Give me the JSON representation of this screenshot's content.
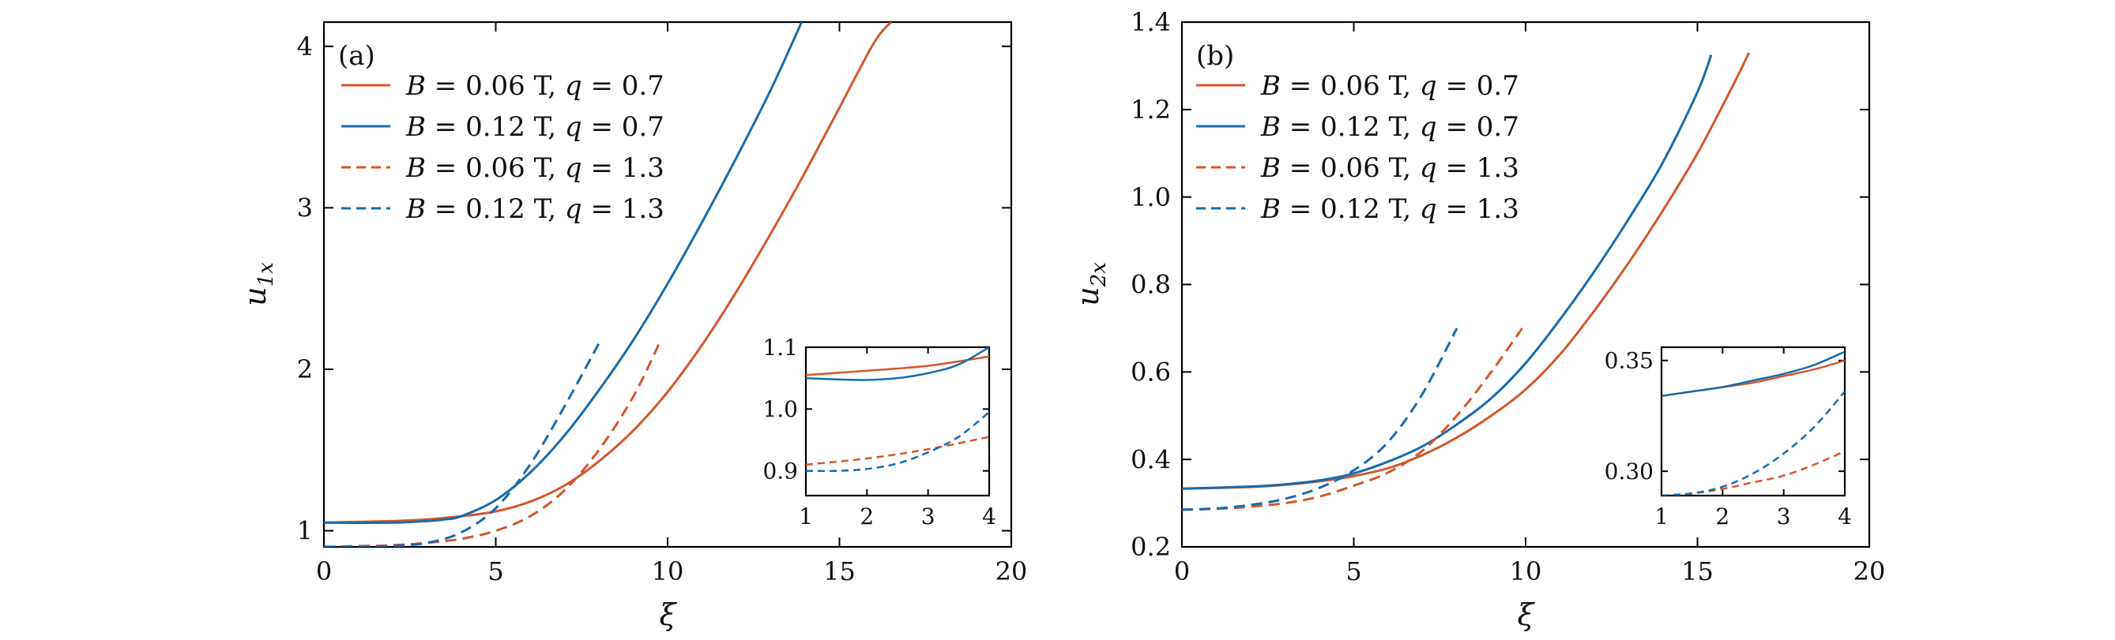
{
  "colors": {
    "orange": "#d4562e",
    "blue": "#1a6bab",
    "axis": "#000000"
  },
  "legend_entries": [
    {
      "prefix": "B",
      "eq1": " = 0.06 ",
      "unit": "T,",
      "qvar": "q",
      "eq2": " = 0.7",
      "color": "orange",
      "dash": false
    },
    {
      "prefix": "B",
      "eq1": " = 0.12 ",
      "unit": "T,",
      "qvar": "q",
      "eq2": " = 0.7",
      "color": "blue",
      "dash": false
    },
    {
      "prefix": "B",
      "eq1": " = 0.06 ",
      "unit": "T,",
      "qvar": "q",
      "eq2": " = 1.3",
      "color": "orange",
      "dash": true
    },
    {
      "prefix": "B",
      "eq1": " = 0.12 ",
      "unit": "T,",
      "qvar": "q",
      "eq2": " = 1.3",
      "color": "blue",
      "dash": true
    }
  ],
  "chart_data": [
    {
      "type": "line",
      "panel_label": "(a)",
      "xlabel": "ξ",
      "ylabel_base": "u",
      "ylabel_sub": "1x",
      "xlim": [
        0,
        20
      ],
      "ylim": [
        0.9,
        4.15
      ],
      "xticks": [
        0,
        5,
        10,
        15,
        20
      ],
      "yticks": [
        1,
        2,
        3,
        4
      ],
      "series": [
        {
          "name": "B = 0.06 T, q = 0.7",
          "color": "orange",
          "dash": false,
          "x": [
            0,
            2,
            3,
            4,
            5,
            6,
            7,
            8,
            9,
            10,
            11,
            12,
            13,
            14,
            15,
            16,
            16.5
          ],
          "y": [
            1.05,
            1.06,
            1.07,
            1.09,
            1.12,
            1.18,
            1.28,
            1.43,
            1.62,
            1.86,
            2.15,
            2.48,
            2.84,
            3.22,
            3.62,
            4.02,
            4.15
          ]
        },
        {
          "name": "B = 0.12 T, q = 0.7",
          "color": "blue",
          "dash": false,
          "x": [
            0,
            2,
            3,
            3.5,
            4,
            5,
            6,
            7,
            8,
            9,
            10,
            11,
            12,
            13,
            13.9
          ],
          "y": [
            1.05,
            1.05,
            1.06,
            1.07,
            1.09,
            1.19,
            1.36,
            1.59,
            1.87,
            2.18,
            2.53,
            2.91,
            3.31,
            3.73,
            4.15
          ]
        },
        {
          "name": "B = 0.06 T, q = 1.3",
          "color": "orange",
          "dash": true,
          "x": [
            0,
            1,
            2,
            3,
            4,
            5,
            6,
            7,
            8,
            9,
            9.8
          ],
          "y": [
            0.9,
            0.905,
            0.91,
            0.925,
            0.95,
            1.0,
            1.09,
            1.25,
            1.5,
            1.83,
            2.18
          ]
        },
        {
          "name": "B = 0.12 T, q = 1.3",
          "color": "blue",
          "dash": true,
          "x": [
            0,
            1,
            2,
            3,
            4,
            5,
            6,
            7,
            8
          ],
          "y": [
            0.9,
            0.9,
            0.905,
            0.925,
            0.99,
            1.14,
            1.41,
            1.77,
            2.16
          ]
        }
      ],
      "inset": {
        "xlim": [
          1,
          4
        ],
        "ylim": [
          0.86,
          1.1
        ],
        "xticks": [
          1,
          2,
          3,
          4
        ],
        "yticks": [
          0.9,
          1.0,
          1.1
        ],
        "ytick_labels": [
          "0.9",
          "1.0",
          "1.1"
        ],
        "series": [
          {
            "color": "orange",
            "dash": false,
            "x": [
              1,
              2,
              3,
              4
            ],
            "y": [
              1.055,
              1.062,
              1.07,
              1.085
            ]
          },
          {
            "color": "blue",
            "dash": false,
            "x": [
              1,
              1.5,
              2,
              2.5,
              3,
              3.5,
              4
            ],
            "y": [
              1.05,
              1.048,
              1.047,
              1.05,
              1.058,
              1.072,
              1.1
            ]
          },
          {
            "color": "orange",
            "dash": true,
            "x": [
              1,
              2,
              3,
              4
            ],
            "y": [
              0.91,
              0.92,
              0.935,
              0.955
            ]
          },
          {
            "color": "blue",
            "dash": true,
            "x": [
              1,
              1.5,
              2,
              2.5,
              3,
              3.5,
              4
            ],
            "y": [
              0.9,
              0.9,
              0.903,
              0.912,
              0.93,
              0.955,
              0.995
            ]
          }
        ]
      }
    },
    {
      "type": "line",
      "panel_label": "(b)",
      "xlabel": "ξ",
      "ylabel_base": "u",
      "ylabel_sub": "2x",
      "xlim": [
        0,
        20
      ],
      "ylim": [
        0.2,
        1.4
      ],
      "xticks": [
        0,
        5,
        10,
        15,
        20
      ],
      "yticks": [
        0.2,
        0.4,
        0.6,
        0.8,
        1.0,
        1.2,
        1.4
      ],
      "ytick_labels": [
        "0.2",
        "0.4",
        "0.6",
        "0.8",
        "1.0",
        "1.2",
        "1.4"
      ],
      "series": [
        {
          "name": "B = 0.06 T, q = 0.7",
          "color": "orange",
          "dash": false,
          "x": [
            0,
            2,
            3,
            4,
            5,
            6,
            7,
            8,
            9,
            10,
            11,
            12,
            13,
            14,
            15,
            16,
            16.5
          ],
          "y": [
            0.333,
            0.337,
            0.342,
            0.35,
            0.362,
            0.38,
            0.41,
            0.45,
            0.5,
            0.56,
            0.64,
            0.74,
            0.85,
            0.97,
            1.1,
            1.25,
            1.33
          ]
        },
        {
          "name": "B = 0.12 T, q = 0.7",
          "color": "blue",
          "dash": false,
          "x": [
            0,
            2,
            3,
            4,
            5,
            6,
            7,
            8,
            9,
            10,
            11,
            12,
            13,
            14,
            15,
            15.4
          ],
          "y": [
            0.333,
            0.338,
            0.343,
            0.352,
            0.368,
            0.395,
            0.43,
            0.48,
            0.54,
            0.62,
            0.72,
            0.83,
            0.95,
            1.08,
            1.24,
            1.325
          ]
        },
        {
          "name": "B = 0.06 T, q = 1.3",
          "color": "orange",
          "dash": true,
          "x": [
            0,
            1,
            2,
            3,
            4,
            5,
            6,
            7,
            8,
            9,
            9.9
          ],
          "y": [
            0.285,
            0.287,
            0.292,
            0.3,
            0.315,
            0.34,
            0.37,
            0.42,
            0.5,
            0.6,
            0.7
          ]
        },
        {
          "name": "B = 0.12 T, q = 1.3",
          "color": "blue",
          "dash": true,
          "x": [
            0,
            1,
            2,
            3,
            4,
            5,
            6,
            7,
            8
          ],
          "y": [
            0.285,
            0.288,
            0.296,
            0.31,
            0.335,
            0.375,
            0.44,
            0.55,
            0.7
          ]
        }
      ],
      "inset": {
        "xlim": [
          1,
          4
        ],
        "ylim": [
          0.289,
          0.356
        ],
        "xticks": [
          1,
          2,
          3,
          4
        ],
        "yticks": [
          0.3,
          0.35
        ],
        "ytick_labels": [
          "0.30",
          "0.35"
        ],
        "series": [
          {
            "color": "orange",
            "dash": false,
            "x": [
              1,
              1.5,
              2,
              2.5,
              3,
              3.5,
              4
            ],
            "y": [
              0.334,
              0.336,
              0.338,
              0.34,
              0.343,
              0.346,
              0.35
            ]
          },
          {
            "color": "blue",
            "dash": false,
            "x": [
              1,
              1.5,
              2,
              2.5,
              3,
              3.5,
              4
            ],
            "y": [
              0.334,
              0.336,
              0.338,
              0.341,
              0.344,
              0.348,
              0.354
            ]
          },
          {
            "color": "orange",
            "dash": true,
            "x": [
              1,
              1.5,
              2,
              2.5,
              3,
              3.5,
              4
            ],
            "y": [
              0.289,
              0.29,
              0.292,
              0.295,
              0.298,
              0.303,
              0.309
            ]
          },
          {
            "color": "blue",
            "dash": true,
            "x": [
              1,
              1.5,
              2,
              2.5,
              3,
              3.5,
              4
            ],
            "y": [
              0.289,
              0.29,
              0.293,
              0.299,
              0.308,
              0.32,
              0.336
            ]
          }
        ]
      }
    }
  ]
}
